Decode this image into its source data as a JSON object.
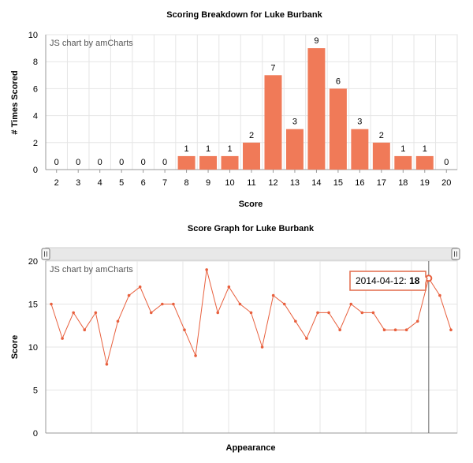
{
  "chart_data": [
    {
      "type": "bar",
      "title": "Scoring Breakdown for Luke Burbank",
      "credit": "JS chart by amCharts",
      "xlabel": "Score",
      "ylabel": "# Times Scored",
      "ylim": [
        0,
        10
      ],
      "yticks": [
        0,
        2,
        4,
        6,
        8,
        10
      ],
      "color": "#f07a58",
      "categories": [
        "2",
        "3",
        "4",
        "5",
        "6",
        "7",
        "8",
        "9",
        "10",
        "11",
        "12",
        "13",
        "14",
        "15",
        "16",
        "17",
        "18",
        "19",
        "20"
      ],
      "values": [
        0,
        0,
        0,
        0,
        0,
        0,
        1,
        1,
        1,
        2,
        7,
        3,
        9,
        6,
        3,
        2,
        1,
        1,
        0
      ],
      "grid": true
    },
    {
      "type": "line",
      "title": "Score Graph for Luke Burbank",
      "credit": "JS chart by amCharts",
      "xlabel": "Appearance",
      "ylabel": "Score",
      "ylim": [
        0,
        20
      ],
      "yticks": [
        0,
        5,
        10,
        15,
        20
      ],
      "color": "#e8603e",
      "values": [
        15,
        11,
        14,
        12,
        14,
        8,
        13,
        16,
        17,
        14,
        15,
        15,
        12,
        9,
        19,
        14,
        17,
        15,
        14,
        10,
        16,
        15,
        13,
        11,
        14,
        14,
        12,
        15,
        14,
        14,
        12,
        12,
        12,
        13,
        18,
        16,
        12
      ],
      "tooltip": {
        "date": "2014-04-12",
        "separator": ": ",
        "value": "18"
      },
      "grid": true
    }
  ]
}
